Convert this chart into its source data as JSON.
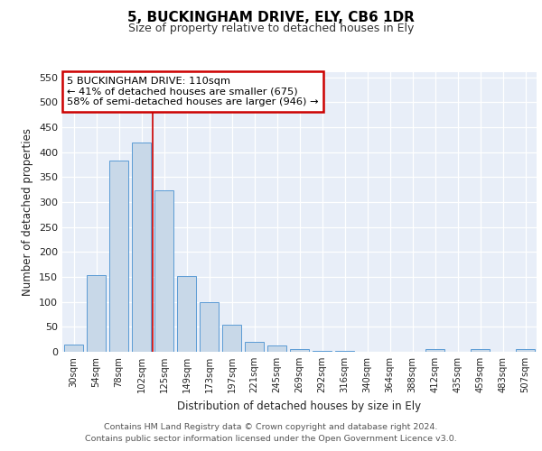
{
  "title1": "5, BUCKINGHAM DRIVE, ELY, CB6 1DR",
  "title2": "Size of property relative to detached houses in Ely",
  "xlabel": "Distribution of detached houses by size in Ely",
  "ylabel": "Number of detached properties",
  "bar_color": "#c8d8e8",
  "bar_edge_color": "#5b9bd5",
  "categories": [
    "30sqm",
    "54sqm",
    "78sqm",
    "102sqm",
    "125sqm",
    "149sqm",
    "173sqm",
    "197sqm",
    "221sqm",
    "245sqm",
    "269sqm",
    "292sqm",
    "316sqm",
    "340sqm",
    "364sqm",
    "388sqm",
    "412sqm",
    "435sqm",
    "459sqm",
    "483sqm",
    "507sqm"
  ],
  "values": [
    15,
    153,
    383,
    420,
    323,
    152,
    100,
    55,
    20,
    12,
    5,
    2,
    1,
    0,
    0,
    0,
    5,
    0,
    5,
    0,
    5
  ],
  "ylim": [
    0,
    560
  ],
  "yticks": [
    0,
    50,
    100,
    150,
    200,
    250,
    300,
    350,
    400,
    450,
    500,
    550
  ],
  "vline_x": 3.5,
  "vline_color": "#cc0000",
  "annotation_text": "5 BUCKINGHAM DRIVE: 110sqm\n← 41% of detached houses are smaller (675)\n58% of semi-detached houses are larger (946) →",
  "annotation_box_color": "#ffffff",
  "annotation_box_edge": "#cc0000",
  "background_color": "#e8eef8",
  "grid_color": "#ffffff",
  "footer1": "Contains HM Land Registry data © Crown copyright and database right 2024.",
  "footer2": "Contains public sector information licensed under the Open Government Licence v3.0."
}
